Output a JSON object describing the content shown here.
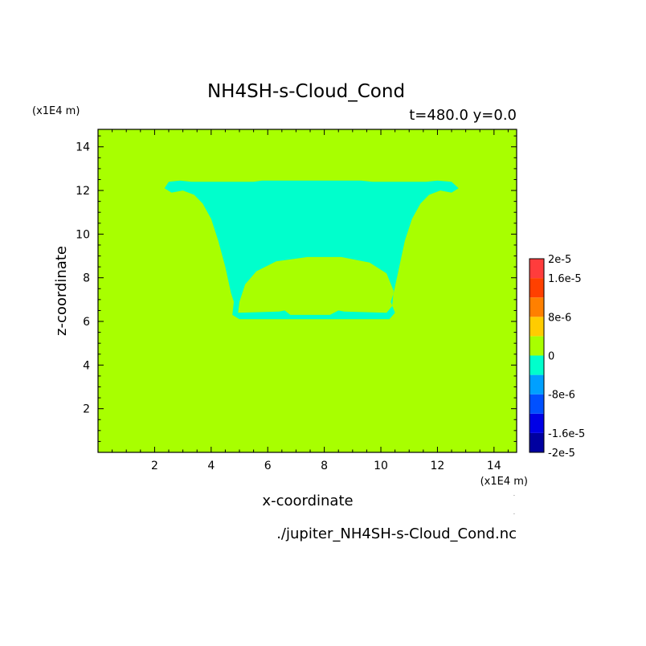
{
  "chart_data": {
    "type": "heatmap",
    "title": "NH4SH-s-Cloud_Cond",
    "subtitle": "t=480.0 y=0.0",
    "xlabel": "x-coordinate",
    "ylabel": "z-coordinate",
    "x_unit": "(x1E4 m)",
    "y_unit": "(x1E4 m)",
    "xlim": [
      0,
      14.8
    ],
    "ylim": [
      0,
      14.8
    ],
    "x_ticks": [
      2,
      4,
      6,
      8,
      10,
      12,
      14
    ],
    "y_ticks": [
      2,
      4,
      6,
      8,
      10,
      12,
      14
    ],
    "background_value": 0,
    "background_color": "#a8ff00",
    "cloud_value": -4e-06,
    "cloud_color": "#00ffcc",
    "cloud_outline": [
      [
        2.5,
        12.4
      ],
      [
        2.9,
        12.45
      ],
      [
        3.3,
        12.4
      ],
      [
        5.5,
        12.4
      ],
      [
        5.8,
        12.45
      ],
      [
        9.3,
        12.45
      ],
      [
        9.7,
        12.4
      ],
      [
        11.6,
        12.4
      ],
      [
        12.0,
        12.45
      ],
      [
        12.5,
        12.4
      ],
      [
        12.75,
        12.1
      ],
      [
        12.5,
        11.9
      ],
      [
        12.1,
        12.0
      ],
      [
        11.7,
        11.8
      ],
      [
        11.4,
        11.4
      ],
      [
        11.1,
        10.7
      ],
      [
        10.85,
        9.7
      ],
      [
        10.65,
        8.5
      ],
      [
        10.45,
        7.3
      ],
      [
        10.35,
        6.9
      ],
      [
        10.5,
        6.4
      ],
      [
        10.3,
        6.1
      ],
      [
        9.6,
        6.1
      ],
      [
        6.2,
        6.1
      ],
      [
        5.0,
        6.1
      ],
      [
        4.75,
        6.3
      ],
      [
        4.8,
        6.9
      ],
      [
        4.7,
        7.3
      ],
      [
        4.5,
        8.5
      ],
      [
        4.25,
        9.7
      ],
      [
        4.0,
        10.7
      ],
      [
        3.7,
        11.4
      ],
      [
        3.4,
        11.8
      ],
      [
        3.0,
        12.0
      ],
      [
        2.6,
        11.9
      ],
      [
        2.35,
        12.1
      ]
    ],
    "hole_outline": [
      [
        4.95,
        6.4
      ],
      [
        5.0,
        6.9
      ],
      [
        5.2,
        7.7
      ],
      [
        5.6,
        8.3
      ],
      [
        6.3,
        8.75
      ],
      [
        7.4,
        8.95
      ],
      [
        8.6,
        8.95
      ],
      [
        9.6,
        8.7
      ],
      [
        10.2,
        8.2
      ],
      [
        10.45,
        7.4
      ],
      [
        10.4,
        6.7
      ],
      [
        10.2,
        6.4
      ],
      [
        8.7,
        6.45
      ],
      [
        8.5,
        6.5
      ],
      [
        8.2,
        6.3
      ],
      [
        6.8,
        6.3
      ],
      [
        6.6,
        6.5
      ],
      [
        6.4,
        6.45
      ]
    ],
    "colorbar": {
      "levels": [
        -2e-05,
        -1.6e-05,
        -1.2e-05,
        -8e-06,
        -4e-06,
        0,
        4e-06,
        8e-06,
        1.2e-05,
        1.6e-05,
        2e-05
      ],
      "colors": [
        "#0000a0",
        "#0000e6",
        "#0050ff",
        "#00a0ff",
        "#00ffcc",
        "#a8ff00",
        "#ffcc00",
        "#ff8000",
        "#ff4000",
        "#ff3c3c"
      ],
      "labels": [
        "-2e-5",
        "-1.6e-5",
        "-8e-6",
        "0",
        "8e-6",
        "1.6e-5",
        "2e-5"
      ],
      "label_values": [
        -2e-05,
        -1.6e-05,
        -8e-06,
        0,
        8e-06,
        1.6e-05,
        2e-05
      ]
    },
    "source_file": "./jupiter_NH4SH-s-Cloud_Cond.nc"
  }
}
